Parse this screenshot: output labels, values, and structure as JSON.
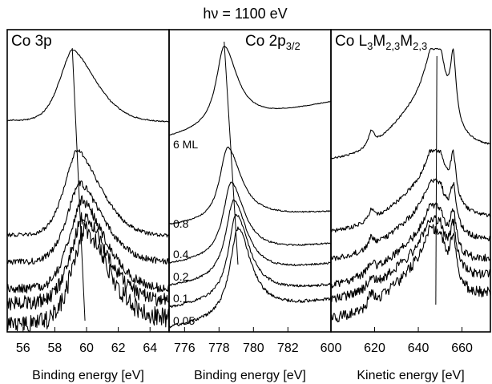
{
  "figure": {
    "top_title": "hν = 1100 eV",
    "y_axis": "unlabeled (intensity, arbitrary units); spectra vertically offset"
  },
  "thickness_labels": [
    "6 ML",
    "0.8",
    "0.4",
    "0.2",
    "0.1",
    "0.05"
  ],
  "chart_data": [
    {
      "type": "line",
      "panel_title": {
        "main": "Co 3p",
        "sub1": "",
        "mid": "",
        "sub2": ""
      },
      "xlabel": "Binding energy [eV]",
      "xlim": [
        55,
        65.2
      ],
      "xticks": [
        56,
        58,
        60,
        62,
        64
      ],
      "xtick_labels": [
        "56",
        "58",
        "60",
        "62",
        "64"
      ],
      "peak_guide": {
        "top": 59.1,
        "bottom": 59.9
      },
      "series": [
        {
          "label": "6 ML",
          "peak_x": 59.1,
          "peak_height": 1.0,
          "noise": 0.004
        },
        {
          "label": "0.8",
          "peak_x": 59.4,
          "peak_height": 0.62,
          "noise": 0.012
        },
        {
          "label": "0.4",
          "peak_x": 59.55,
          "peak_height": 0.55,
          "noise": 0.02
        },
        {
          "label": "0.2",
          "peak_x": 59.7,
          "peak_height": 0.5,
          "noise": 0.03
        },
        {
          "label": "0.1",
          "peak_x": 59.8,
          "peak_height": 0.45,
          "noise": 0.045
        },
        {
          "label": "0.05",
          "peak_x": 59.9,
          "peak_height": 0.42,
          "noise": 0.06
        }
      ]
    },
    {
      "type": "line",
      "panel_title": {
        "main": "Co 2p",
        "sub1": "3/2",
        "mid": "",
        "sub2": ""
      },
      "xlabel": "Binding energy [eV]",
      "xlim": [
        775.1,
        784.5
      ],
      "xticks": [
        776,
        778,
        780,
        782
      ],
      "xtick_labels": [
        "776",
        "778",
        "780",
        "782"
      ],
      "peak_guide": {
        "top": 778.3,
        "bottom": 779.1
      },
      "series": [
        {
          "label": "6 ML",
          "peak_x": 778.3,
          "peak_height": 1.0,
          "noise": 0.002
        },
        {
          "label": "0.8",
          "peak_x": 778.5,
          "peak_height": 0.65,
          "noise": 0.004
        },
        {
          "label": "0.4",
          "peak_x": 778.7,
          "peak_height": 0.55,
          "noise": 0.005
        },
        {
          "label": "0.2",
          "peak_x": 778.85,
          "peak_height": 0.48,
          "noise": 0.006
        },
        {
          "label": "0.1",
          "peak_x": 779.0,
          "peak_height": 0.42,
          "noise": 0.008
        },
        {
          "label": "0.05",
          "peak_x": 779.1,
          "peak_height": 0.38,
          "noise": 0.01
        }
      ]
    },
    {
      "type": "line",
      "panel_title": {
        "main": "Co L",
        "sub1": "3",
        "mid": "M",
        "sub2": "2,3",
        "tail": "M",
        "sub3": "2,3"
      },
      "xlabel": "Kinetic energy [eV]",
      "xlim": [
        600,
        673
      ],
      "xticks": [
        600,
        620,
        640,
        660
      ],
      "xtick_labels": [
        "600",
        "620",
        "640",
        "660"
      ],
      "peak_guide": {
        "top": 648.5,
        "bottom": 648.0
      },
      "series": [
        {
          "label": "6 ML",
          "peak_x": 648.5,
          "peak_height": 1.0,
          "noise": 0.005
        },
        {
          "label": "0.8",
          "peak_x": 648.4,
          "peak_height": 0.85,
          "noise": 0.012
        },
        {
          "label": "0.4",
          "peak_x": 648.3,
          "peak_height": 0.8,
          "noise": 0.018
        },
        {
          "label": "0.2",
          "peak_x": 648.2,
          "peak_height": 0.75,
          "noise": 0.025
        },
        {
          "label": "0.1",
          "peak_x": 648.1,
          "peak_height": 0.7,
          "noise": 0.03
        },
        {
          "label": "0.05",
          "peak_x": 648.0,
          "peak_height": 0.65,
          "noise": 0.035
        }
      ]
    }
  ]
}
